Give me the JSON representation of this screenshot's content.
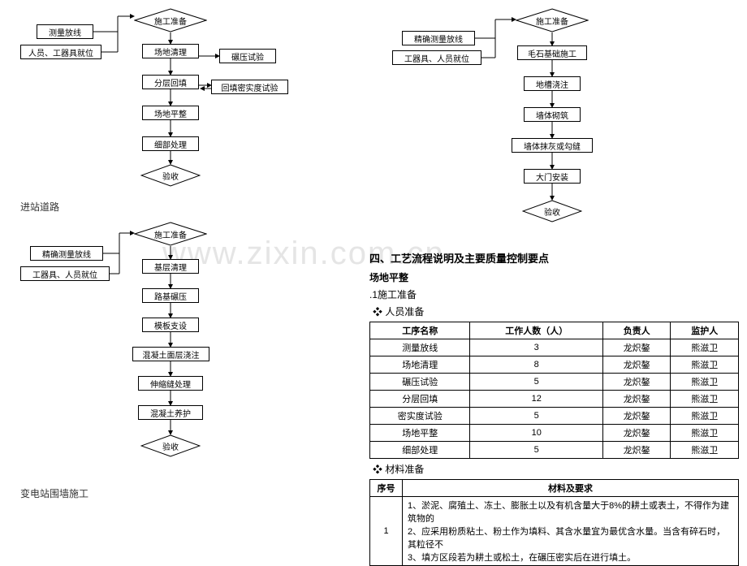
{
  "watermark": "www.zixin.com.cn",
  "flowchart1": {
    "start": {
      "label": "施工准备",
      "w": 80,
      "h": 28
    },
    "left1": "测量放线",
    "left2": "人员、工器具就位",
    "steps": [
      "场地清理",
      "分层回填",
      "场地平整",
      "细部处理"
    ],
    "side1": "碾压试验",
    "side2": "回填密实度试验",
    "end": {
      "label": "验收",
      "w": 70,
      "h": 26
    },
    "caption": "进站道路"
  },
  "flowchart2": {
    "start": {
      "label": "施工准备",
      "w": 80,
      "h": 28
    },
    "left1": "精确测量放线",
    "left2": "工器具、人员就位",
    "steps": [
      "基层清理",
      "路基碾压",
      "模板支设",
      "混凝土面层浇注",
      "伸缩缝处理",
      "混凝土养护"
    ],
    "end": {
      "label": "验收",
      "w": 70,
      "h": 26
    },
    "caption": "变电站围墙施工"
  },
  "flowchart3": {
    "start": {
      "label": "施工准备",
      "w": 80,
      "h": 28
    },
    "left1": "精确测量放线",
    "left2": "工器具、人员就位",
    "steps": [
      "毛石基础施工",
      "地槽浇注",
      "墙体砌筑",
      "墙体抹灰或勾缝",
      "大门安装"
    ],
    "end": {
      "label": "验收",
      "w": 70,
      "h": 26
    }
  },
  "section": {
    "title": "四、工艺流程说明及主要质量控制要点",
    "sub1": "场地平整",
    "sub2": ".1施工准备",
    "bullet1": "❖ 人员准备",
    "bullet2": "❖ 材料准备"
  },
  "personnel": {
    "headers": [
      "工序名称",
      "工作人数（人）",
      "负责人",
      "监护人"
    ],
    "rows": [
      [
        "测量放线",
        "3",
        "龙炽鏊",
        "熊滋卫"
      ],
      [
        "场地清理",
        "8",
        "龙炽鏊",
        "熊滋卫"
      ],
      [
        "碾压试验",
        "5",
        "龙炽鏊",
        "熊滋卫"
      ],
      [
        "分层回填",
        "12",
        "龙炽鏊",
        "熊滋卫"
      ],
      [
        "密实度试验",
        "5",
        "龙炽鏊",
        "熊滋卫"
      ],
      [
        "场地平整",
        "10",
        "龙炽鏊",
        "熊滋卫"
      ],
      [
        "细部处理",
        "5",
        "龙炽鏊",
        "熊滋卫"
      ]
    ]
  },
  "materials": {
    "headers": [
      "序号",
      "材料及要求"
    ],
    "rows": [
      [
        "1",
        [
          "1、淤泥、腐殖土、冻土、膨胀土以及有机含量大于8%的耕土或表土，不得作为建筑物的",
          "2、应采用粉质粘土、粉土作为填料、其含水量宜为最优含水量。当含有碎石时，其粒径不",
          "3、填方区段若为耕土或松土，在碾压密实后在进行填土。"
        ]
      ]
    ]
  },
  "style": {
    "node_border": "#000000",
    "node_bg": "#ffffff",
    "text_color": "#000000",
    "caption_color": "#333333",
    "watermark_color": "#e5e5e5",
    "arrow_stroke": "#000000"
  }
}
